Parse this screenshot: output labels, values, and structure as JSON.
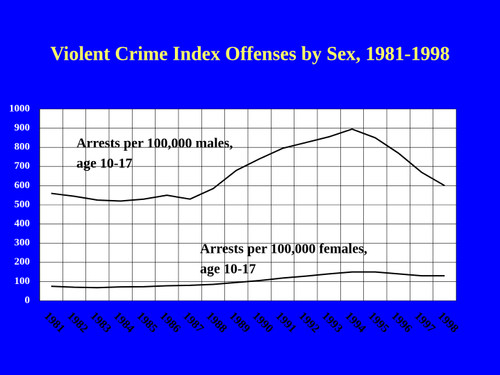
{
  "chart_data": {
    "type": "line",
    "title": "Violent Crime Index Offenses by Sex, 1981-1998",
    "categories": [
      "1981",
      "1982",
      "1983",
      "1984",
      "1985",
      "1986",
      "1987",
      "1988",
      "1989",
      "1990",
      "1991",
      "1992",
      "1993",
      "1994",
      "1995",
      "1996",
      "1997",
      "1998"
    ],
    "series": [
      {
        "label_lines": [
          "Arrests per 100,000 males,",
          "age 10-17"
        ],
        "color": "#000000",
        "values": [
          560,
          545,
          525,
          520,
          530,
          550,
          530,
          585,
          680,
          740,
          795,
          825,
          855,
          895,
          850,
          770,
          670,
          600
        ]
      },
      {
        "label_lines": [
          "Arrests per 100,000 females,",
          "age 10-17"
        ],
        "color": "#000000",
        "values": [
          75,
          70,
          68,
          72,
          73,
          78,
          80,
          85,
          95,
          105,
          118,
          128,
          140,
          150,
          150,
          140,
          130,
          130
        ]
      }
    ],
    "ylim": [
      0,
      1000
    ],
    "yticks": [
      0,
      100,
      200,
      300,
      400,
      500,
      600,
      700,
      800,
      900,
      1000
    ],
    "grid": true
  }
}
